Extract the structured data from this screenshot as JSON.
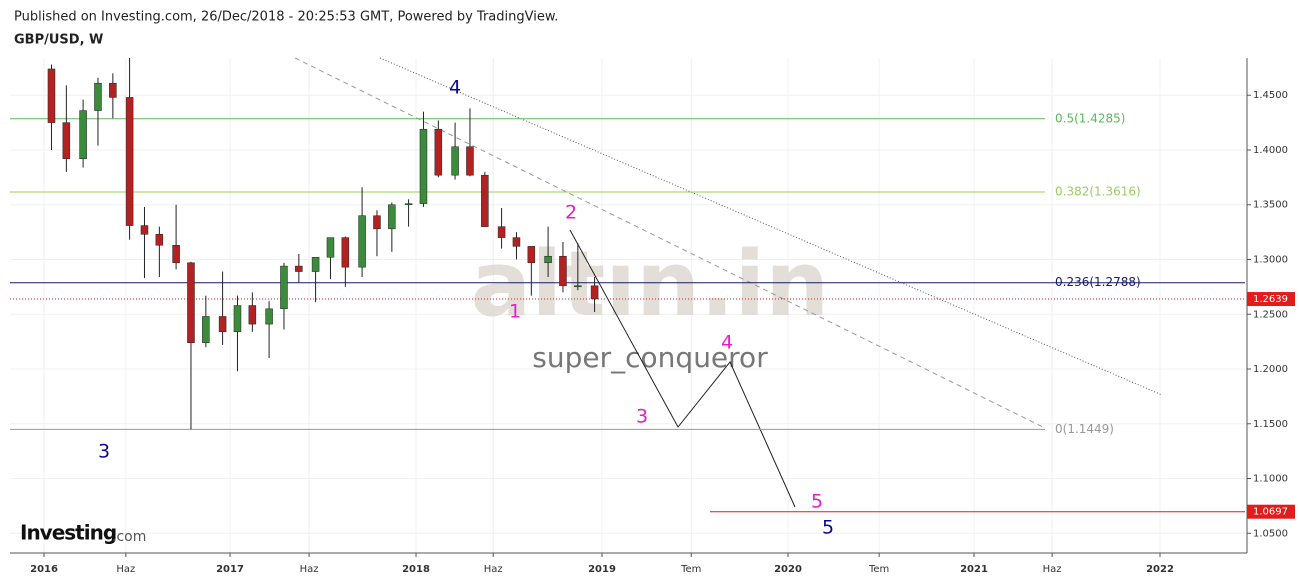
{
  "header": "Published on Investing.com, 26/Dec/2018 - 20:25:53 GMT, Powered by TradingView.",
  "chart_data": {
    "type": "candlestick",
    "title": "GBP/USD, W",
    "x": [
      2016.04,
      2016.12,
      2016.21,
      2016.29,
      2016.37,
      2016.46,
      2016.54,
      2016.62,
      2016.71,
      2016.79,
      2016.87,
      2016.96,
      2017.04,
      2017.12,
      2017.21,
      2017.29,
      2017.37,
      2017.46,
      2017.54,
      2017.62,
      2017.71,
      2017.79,
      2017.87,
      2017.96,
      2018.04,
      2018.12,
      2018.21,
      2018.29,
      2018.37,
      2018.46,
      2018.54,
      2018.62,
      2018.71,
      2018.79,
      2018.87,
      2018.96
    ],
    "open": [
      1.474,
      1.425,
      1.392,
      1.436,
      1.461,
      1.448,
      1.331,
      1.323,
      1.313,
      1.297,
      1.224,
      1.248,
      1.234,
      1.258,
      1.241,
      1.255,
      1.294,
      1.289,
      1.302,
      1.32,
      1.293,
      1.34,
      1.328,
      1.35,
      1.351,
      1.419,
      1.377,
      1.403,
      1.377,
      1.33,
      1.32,
      1.312,
      1.297,
      1.303,
      1.276,
      1.276
    ],
    "high": [
      1.478,
      1.459,
      1.446,
      1.466,
      1.47,
      1.484,
      1.348,
      1.33,
      1.35,
      1.298,
      1.267,
      1.289,
      1.267,
      1.27,
      1.262,
      1.297,
      1.305,
      1.301,
      1.32,
      1.321,
      1.366,
      1.345,
      1.352,
      1.355,
      1.435,
      1.427,
      1.425,
      1.438,
      1.38,
      1.347,
      1.325,
      1.311,
      1.33,
      1.316,
      1.315,
      1.284
    ],
    "low": [
      1.4,
      1.38,
      1.384,
      1.404,
      1.429,
      1.318,
      1.283,
      1.284,
      1.291,
      1.145,
      1.22,
      1.222,
      1.198,
      1.234,
      1.21,
      1.236,
      1.279,
      1.261,
      1.282,
      1.275,
      1.284,
      1.303,
      1.307,
      1.33,
      1.348,
      1.375,
      1.373,
      1.376,
      1.33,
      1.31,
      1.3,
      1.267,
      1.284,
      1.27,
      1.272,
      1.252
    ],
    "close": [
      1.425,
      1.392,
      1.436,
      1.461,
      1.448,
      1.331,
      1.323,
      1.313,
      1.297,
      1.224,
      1.248,
      1.234,
      1.258,
      1.241,
      1.255,
      1.294,
      1.289,
      1.302,
      1.32,
      1.293,
      1.34,
      1.328,
      1.35,
      1.351,
      1.419,
      1.377,
      1.403,
      1.377,
      1.33,
      1.32,
      1.312,
      1.297,
      1.303,
      1.276,
      1.276,
      1.264
    ],
    "up_color": "#3c8b3c",
    "down_color": "#b22222",
    "xlim": [
      2015.817,
      2022.457
    ],
    "xticks": [
      {
        "value": 2016,
        "label": "2016"
      },
      {
        "value": 2016.44,
        "label": "Haz"
      },
      {
        "value": 2017,
        "label": "2017"
      },
      {
        "value": 2017.425,
        "label": "Haz"
      },
      {
        "value": 2018,
        "label": "2018"
      },
      {
        "value": 2018.415,
        "label": "Haz"
      },
      {
        "value": 2019,
        "label": "2019"
      },
      {
        "value": 2019.48,
        "label": "Tem"
      },
      {
        "value": 2020,
        "label": "2020"
      },
      {
        "value": 2020.49,
        "label": "Tem"
      },
      {
        "value": 2021,
        "label": "2021"
      },
      {
        "value": 2021.42,
        "label": "Haz"
      },
      {
        "value": 2022,
        "label": "2022"
      }
    ],
    "ylim": [
      1.032,
      1.484
    ],
    "yticks": [
      {
        "value": 1.05,
        "label": "1.0500"
      },
      {
        "value": 1.1,
        "label": "1.1000"
      },
      {
        "value": 1.15,
        "label": "1.1500"
      },
      {
        "value": 1.2,
        "label": "1.2000"
      },
      {
        "value": 1.25,
        "label": "1.2500"
      },
      {
        "value": 1.3,
        "label": "1.3000"
      },
      {
        "value": 1.35,
        "label": "1.3500"
      },
      {
        "value": 1.4,
        "label": "1.4000"
      },
      {
        "value": 1.45,
        "label": "1.4500"
      }
    ],
    "grid": true,
    "fib_levels": [
      {
        "value": 1.4285,
        "label": "0.5(1.4285)",
        "color": "#5cb85c"
      },
      {
        "value": 1.3616,
        "label": "0.382(1.3616)",
        "color": "#9acd60"
      },
      {
        "value": 1.2788,
        "label": "0.236(1.2788)",
        "color": "#1a1a6e"
      },
      {
        "value": 1.1449,
        "label": "0(1.1449)",
        "color": "#999999"
      }
    ],
    "current_price": 1.2639,
    "target_price": 1.0697,
    "price_color": "#e31b1b",
    "annotations": [
      {
        "text": "4",
        "color": "#0a0a8c"
      },
      {
        "text": "3",
        "color": "#0a0a8c"
      },
      {
        "text": "5",
        "color": "#0a0a8c"
      },
      {
        "text": "2",
        "color": "#e61ec8"
      },
      {
        "text": "1",
        "color": "#e61ec8"
      },
      {
        "text": "3",
        "color": "#e61ec8"
      },
      {
        "text": "4",
        "color": "#e61ec8"
      },
      {
        "text": "5",
        "color": "#e61ec8"
      }
    ],
    "watermark": "altın.in",
    "author": "super_conqueror",
    "logo": "Investing",
    "logo_suffix": ".com"
  }
}
